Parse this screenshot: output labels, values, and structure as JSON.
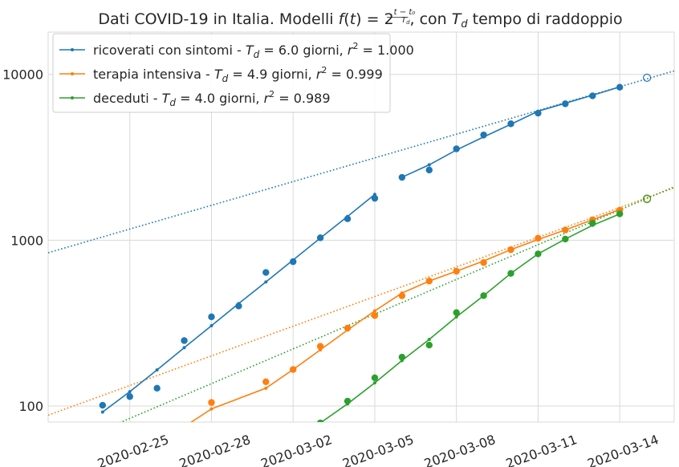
{
  "chart_data": {
    "type": "line",
    "title": "Dati COVID-19 in Italia. Modelli f(t) = 2^((t−t₀)/T_d), con T_d tempo di raddoppio",
    "title_parts": {
      "prefix": "Dati COVID-19 in Italia. Modelli ",
      "f": "f",
      "lparen": "(",
      "t": "t",
      "rparen_eq": ") = 2",
      "exp_num": "t − t₀",
      "exp_den": "T",
      "exp_den_sub": "d",
      "con": ", con ",
      "T": "T",
      "T_sub": "d",
      "suffix": " tempo di raddoppio"
    },
    "xlabel": "",
    "ylabel": "",
    "yscale": "log",
    "xlim": [
      "2020-02-22",
      "2020-03-16"
    ],
    "ylim": [
      80,
      18000
    ],
    "grid": true,
    "legend_position": "top-left",
    "x_ticks": [
      "2020-02-25",
      "2020-02-28",
      "2020-03-02",
      "2020-03-05",
      "2020-03-08",
      "2020-03-11",
      "2020-03-14"
    ],
    "y_ticks": [
      {
        "value": 100,
        "label": "100"
      },
      {
        "value": 1000,
        "label": "1000"
      },
      {
        "value": 10000,
        "label": "10000"
      }
    ],
    "series": [
      {
        "key": "ricoverati",
        "legend": {
          "name": "ricoverati con sintomi",
          "sep": " - ",
          "T": "T",
          "sub": "d",
          "eq": " = 6.0 giorni, ",
          "r": "r",
          "sup": "2",
          "eq2": " = 1.000"
        },
        "color": "#1f77b4",
        "observed": [
          {
            "x": "2020-02-24",
            "y": 101
          },
          {
            "x": "2020-02-25",
            "y": 114
          },
          {
            "x": "2020-02-26",
            "y": 128
          },
          {
            "x": "2020-02-27",
            "y": 248
          },
          {
            "x": "2020-02-28",
            "y": 345
          },
          {
            "x": "2020-02-29",
            "y": 401
          },
          {
            "x": "2020-03-01",
            "y": 639
          },
          {
            "x": "2020-03-02",
            "y": 742
          },
          {
            "x": "2020-03-03",
            "y": 1034
          },
          {
            "x": "2020-03-04",
            "y": 1346
          },
          {
            "x": "2020-03-05",
            "y": 1790
          },
          {
            "x": "2020-03-06",
            "y": 2394
          },
          {
            "x": "2020-03-07",
            "y": 2651
          },
          {
            "x": "2020-03-08",
            "y": 3557
          },
          {
            "x": "2020-03-09",
            "y": 4316
          },
          {
            "x": "2020-03-10",
            "y": 5038
          },
          {
            "x": "2020-03-11",
            "y": 5838
          },
          {
            "x": "2020-03-12",
            "y": 6650
          },
          {
            "x": "2020-03-13",
            "y": 7426
          },
          {
            "x": "2020-03-14",
            "y": 8372
          }
        ],
        "fit_segments": [
          [
            {
              "x": "2020-02-24",
              "y": 92
            },
            {
              "x": "2020-02-25",
              "y": 122
            },
            {
              "x": "2020-02-26",
              "y": 165
            },
            {
              "x": "2020-02-27",
              "y": 225
            },
            {
              "x": "2020-02-28",
              "y": 305
            },
            {
              "x": "2020-02-29",
              "y": 415
            },
            {
              "x": "2020-03-01",
              "y": 560
            },
            {
              "x": "2020-03-02",
              "y": 760
            },
            {
              "x": "2020-03-03",
              "y": 1030
            },
            {
              "x": "2020-03-04",
              "y": 1390
            },
            {
              "x": "2020-03-05",
              "y": 1890
            }
          ],
          [
            {
              "x": "2020-03-06",
              "y": 2400
            },
            {
              "x": "2020-03-07",
              "y": 2850
            },
            {
              "x": "2020-03-08",
              "y": 3500
            },
            {
              "x": "2020-03-09",
              "y": 4200
            },
            {
              "x": "2020-03-10",
              "y": 5000
            },
            {
              "x": "2020-03-11",
              "y": 6000
            },
            {
              "x": "2020-03-12",
              "y": 6700
            },
            {
              "x": "2020-03-13",
              "y": 7500
            },
            {
              "x": "2020-03-14",
              "y": 8400
            }
          ]
        ],
        "trend": [
          {
            "x": "2020-02-22",
            "y": 840
          },
          {
            "x": "2020-03-16",
            "y": 10500
          }
        ],
        "forecast": {
          "x": "2020-03-15",
          "y": 9550
        }
      },
      {
        "key": "terapia",
        "legend": {
          "name": "terapia intensiva",
          "sep": " - ",
          "T": "T",
          "sub": "d",
          "eq": " = 4.9 giorni, ",
          "r": "r",
          "sup": "2",
          "eq2": " = 0.999"
        },
        "color": "#ff7f0e",
        "observed": [
          {
            "x": "2020-02-28",
            "y": 105
          },
          {
            "x": "2020-03-01",
            "y": 140
          },
          {
            "x": "2020-03-02",
            "y": 166
          },
          {
            "x": "2020-03-03",
            "y": 229
          },
          {
            "x": "2020-03-04",
            "y": 295
          },
          {
            "x": "2020-03-05",
            "y": 351
          },
          {
            "x": "2020-03-06",
            "y": 462
          },
          {
            "x": "2020-03-07",
            "y": 567
          },
          {
            "x": "2020-03-08",
            "y": 650
          },
          {
            "x": "2020-03-09",
            "y": 733
          },
          {
            "x": "2020-03-10",
            "y": 877
          },
          {
            "x": "2020-03-11",
            "y": 1028
          },
          {
            "x": "2020-03-12",
            "y": 1153
          },
          {
            "x": "2020-03-13",
            "y": 1328
          },
          {
            "x": "2020-03-14",
            "y": 1518
          }
        ],
        "fit_segments": [
          [
            {
              "x": "2020-02-27",
              "y": 75
            },
            {
              "x": "2020-02-28",
              "y": 96
            },
            {
              "x": "2020-03-01",
              "y": 128
            },
            {
              "x": "2020-03-02",
              "y": 166
            },
            {
              "x": "2020-03-03",
              "y": 218
            },
            {
              "x": "2020-03-04",
              "y": 287
            },
            {
              "x": "2020-03-05",
              "y": 375
            },
            {
              "x": "2020-03-06",
              "y": 480
            }
          ],
          [
            {
              "x": "2020-03-06",
              "y": 480
            },
            {
              "x": "2020-03-07",
              "y": 567
            },
            {
              "x": "2020-03-08",
              "y": 650
            },
            {
              "x": "2020-03-09",
              "y": 750
            },
            {
              "x": "2020-03-10",
              "y": 877
            },
            {
              "x": "2020-03-11",
              "y": 1010
            },
            {
              "x": "2020-03-12",
              "y": 1153
            },
            {
              "x": "2020-03-13",
              "y": 1328
            },
            {
              "x": "2020-03-14",
              "y": 1530
            }
          ]
        ],
        "trend": [
          {
            "x": "2020-02-22",
            "y": 88
          },
          {
            "x": "2020-03-16",
            "y": 2070
          }
        ],
        "forecast": {
          "x": "2020-03-15",
          "y": 1770
        }
      },
      {
        "key": "deceduti",
        "legend": {
          "name": "deceduti",
          "sep": " - ",
          "T": "T",
          "sub": "d",
          "eq": " = 4.0 giorni, ",
          "r": "r",
          "sup": "2",
          "eq2": " = 0.989"
        },
        "color": "#2ca02c",
        "observed": [
          {
            "x": "2020-03-03",
            "y": 79
          },
          {
            "x": "2020-03-04",
            "y": 107
          },
          {
            "x": "2020-03-05",
            "y": 148
          },
          {
            "x": "2020-03-06",
            "y": 197
          },
          {
            "x": "2020-03-07",
            "y": 233
          },
          {
            "x": "2020-03-08",
            "y": 366
          },
          {
            "x": "2020-03-09",
            "y": 463
          },
          {
            "x": "2020-03-10",
            "y": 631
          },
          {
            "x": "2020-03-11",
            "y": 827
          },
          {
            "x": "2020-03-12",
            "y": 1016
          },
          {
            "x": "2020-03-13",
            "y": 1266
          },
          {
            "x": "2020-03-14",
            "y": 1441
          }
        ],
        "fit_segments": [
          [
            {
              "x": "2020-03-03",
              "y": 79
            },
            {
              "x": "2020-03-04",
              "y": 103
            },
            {
              "x": "2020-03-05",
              "y": 138
            },
            {
              "x": "2020-03-06",
              "y": 188
            },
            {
              "x": "2020-03-07",
              "y": 252
            },
            {
              "x": "2020-03-08",
              "y": 345
            },
            {
              "x": "2020-03-09",
              "y": 463
            },
            {
              "x": "2020-03-10",
              "y": 631
            },
            {
              "x": "2020-03-11",
              "y": 827
            }
          ],
          [
            {
              "x": "2020-03-11",
              "y": 827
            },
            {
              "x": "2020-03-12",
              "y": 1016
            },
            {
              "x": "2020-03-13",
              "y": 1230
            },
            {
              "x": "2020-03-14",
              "y": 1441
            }
          ]
        ],
        "trend": [
          {
            "x": "2020-02-22",
            "y": 52
          },
          {
            "x": "2020-03-16",
            "y": 2100
          }
        ],
        "forecast": {
          "x": "2020-03-15",
          "y": 1780
        }
      }
    ]
  }
}
